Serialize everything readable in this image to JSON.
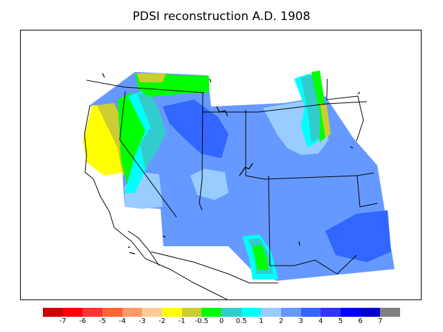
{
  "title": "PDSI reconstruction A.D. 1908",
  "legend": {
    "colors": [
      "#cc0000",
      "#ff0000",
      "#ff3333",
      "#ff6633",
      "#ff9966",
      "#ffcc99",
      "#ffff00",
      "#cccc33",
      "#00ff00",
      "#33cccc",
      "#00ffff",
      "#99ccff",
      "#6699ff",
      "#3366ff",
      "#3333ff",
      "#0000ff",
      "#0000cc",
      "#808080"
    ],
    "ticks": [
      "-7",
      "-6",
      "-5",
      "-4",
      "-3",
      "-2",
      "-1",
      "-0.5",
      "0",
      "0.5",
      "1",
      "2",
      "3",
      "4",
      "5",
      "6",
      "7"
    ]
  }
}
